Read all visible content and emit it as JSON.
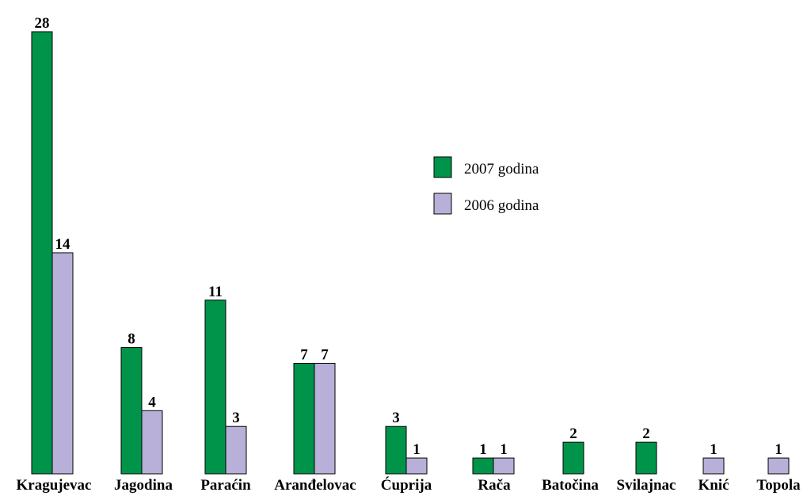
{
  "chart_data": {
    "type": "bar",
    "title": "",
    "xlabel": "",
    "ylabel": "",
    "ylim": [
      0,
      28
    ],
    "grid": false,
    "legend_position": "center-right",
    "categories": [
      "Kragujevac",
      "Jagodina",
      "Paraćin",
      "Aranđelovac",
      "Ćuprija",
      "Rača",
      "Batočina",
      "Svilajnac",
      "Knić",
      "Topola"
    ],
    "series": [
      {
        "name": "2007 godina",
        "color": "#00944a",
        "values": [
          28,
          8,
          11,
          7,
          3,
          1,
          2,
          2,
          null,
          null
        ]
      },
      {
        "name": "2006 godina",
        "color": "#b8b0d8",
        "values": [
          14,
          4,
          3,
          7,
          1,
          1,
          null,
          null,
          1,
          1
        ]
      }
    ]
  }
}
